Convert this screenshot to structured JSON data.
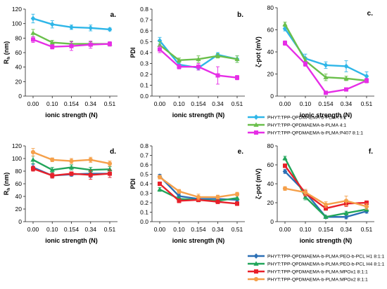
{
  "colors": {
    "cyan": "#2eb6e8",
    "green": "#6abf4b",
    "magenta": "#e62ee6",
    "blue": "#2b6fb5",
    "darkgreen": "#21a55a",
    "red": "#e8202a",
    "orange": "#f5a04a"
  },
  "legends": {
    "top": [
      {
        "label": "PHYT:TPP-QPDMAEMA-b-PLMA 9:1",
        "color": "cyan",
        "marker": "diamond"
      },
      {
        "label": "PHYT:TPP-QPDMAEMA-b-PLMA 4:1",
        "color": "green",
        "marker": "triangle"
      },
      {
        "label": "PHYT:TPP-QPDMAEMA-b-PLMA:P407 8:1:1",
        "color": "magenta",
        "marker": "square"
      }
    ],
    "bottom": [
      {
        "label": "PHYT:TPP-QPDMAEMA-b-PLMA:PEO-b-PCL H1 8:1:1",
        "color": "blue",
        "marker": "diamond"
      },
      {
        "label": "PHYT:TPP-QPDMAEMA-b-PLMA:PEO-b-PCL H4 8:1:1",
        "color": "darkgreen",
        "marker": "triangle"
      },
      {
        "label": "PHYT:TPP-QPDMAEMA-b-PLMA:MPOx1 8:1:1",
        "color": "red",
        "marker": "square"
      },
      {
        "label": "PHYT:TPP-QPDMAEMA-b-PLMA:MPOx2 8:1:1",
        "color": "orange",
        "marker": "circle"
      }
    ]
  },
  "chart_data": [
    {
      "id": "a",
      "type": "line",
      "panel_label": "a.",
      "xlabel": "ionic strength (N)",
      "ylabel": "Rh (nm)",
      "categories": [
        "0.00",
        "0.10",
        "0.154",
        "0.34",
        "0.51"
      ],
      "ylim": [
        0,
        120
      ],
      "yticks": [
        0,
        20,
        40,
        60,
        80,
        100,
        120
      ],
      "series": [
        {
          "color": "cyan",
          "marker": "diamond",
          "values": [
            107,
            99,
            95,
            94,
            92
          ],
          "errors": [
            6,
            5,
            3,
            4,
            2
          ]
        },
        {
          "color": "green",
          "marker": "triangle",
          "values": [
            87,
            74,
            72,
            72,
            72
          ],
          "errors": [
            5,
            3,
            4,
            3,
            3
          ]
        },
        {
          "color": "magenta",
          "marker": "square",
          "values": [
            78,
            68,
            69,
            71,
            72
          ],
          "errors": [
            4,
            3,
            6,
            5,
            3
          ]
        }
      ]
    },
    {
      "id": "b",
      "type": "line",
      "panel_label": "b.",
      "xlabel": "ionic strength (N)",
      "ylabel": "PDI",
      "categories": [
        "0.00",
        "0.10",
        "0.154",
        "0.34",
        "0.51"
      ],
      "ylim": [
        0,
        0.8
      ],
      "yticks": [
        0,
        0.1,
        0.2,
        0.3,
        0.4,
        0.5,
        0.6,
        0.7,
        0.8
      ],
      "series": [
        {
          "color": "cyan",
          "marker": "diamond",
          "values": [
            0.51,
            0.29,
            0.26,
            0.38,
            0.34
          ],
          "errors": [
            0.03,
            0.03,
            0.02,
            0.02,
            0.03
          ]
        },
        {
          "color": "green",
          "marker": "triangle",
          "values": [
            0.47,
            0.33,
            0.34,
            0.37,
            0.34
          ],
          "errors": [
            0.03,
            0.02,
            0.03,
            0.02,
            0.03
          ]
        },
        {
          "color": "magenta",
          "marker": "square",
          "values": [
            0.43,
            0.27,
            0.27,
            0.19,
            0.17
          ],
          "errors": [
            0.03,
            0.02,
            0.03,
            0.08,
            0.02
          ]
        }
      ]
    },
    {
      "id": "c",
      "type": "line",
      "panel_label": "c.",
      "xlabel": "ionic strength (N)",
      "ylabel": "ζ-pot (mV)",
      "categories": [
        "0.00",
        "0.10",
        "0.154",
        "0.34",
        "0.51"
      ],
      "ylim": [
        0,
        80
      ],
      "yticks": [
        0,
        20,
        40,
        60,
        80
      ],
      "series": [
        {
          "color": "cyan",
          "marker": "diamond",
          "values": [
            61,
            34,
            28,
            27,
            18
          ],
          "errors": [
            2,
            4,
            3,
            5,
            4
          ]
        },
        {
          "color": "green",
          "marker": "triangle",
          "values": [
            65,
            32,
            17,
            16,
            14
          ],
          "errors": [
            2,
            3,
            3,
            2,
            2
          ]
        },
        {
          "color": "magenta",
          "marker": "square",
          "values": [
            48,
            29,
            3,
            6,
            14
          ],
          "errors": [
            2,
            2,
            1,
            1,
            2
          ]
        }
      ]
    },
    {
      "id": "d",
      "type": "line",
      "panel_label": "d.",
      "xlabel": "ionic strength (N)",
      "ylabel": "Rh (nm)",
      "categories": [
        "0.00",
        "0.10",
        "0.154",
        "0.34",
        "0.51"
      ],
      "ylim": [
        0,
        120
      ],
      "yticks": [
        0,
        20,
        40,
        60,
        80,
        100,
        120
      ],
      "series": [
        {
          "color": "blue",
          "marker": "diamond",
          "values": [
            86,
            73,
            75,
            76,
            76
          ],
          "errors": [
            5,
            4,
            3,
            6,
            6
          ]
        },
        {
          "color": "darkgreen",
          "marker": "triangle",
          "values": [
            98,
            82,
            86,
            82,
            83
          ],
          "errors": [
            6,
            4,
            4,
            4,
            4
          ]
        },
        {
          "color": "red",
          "marker": "square",
          "values": [
            84,
            73,
            76,
            74,
            76
          ],
          "errors": [
            4,
            4,
            3,
            7,
            6
          ]
        },
        {
          "color": "orange",
          "marker": "circle",
          "values": [
            110,
            98,
            96,
            98,
            92
          ],
          "errors": [
            6,
            3,
            4,
            4,
            4
          ]
        }
      ]
    },
    {
      "id": "e",
      "type": "line",
      "panel_label": "e.",
      "xlabel": "ionic strength (N)",
      "ylabel": "PDI",
      "categories": [
        "0.00",
        "0.10",
        "0.154",
        "0.34",
        "0.51"
      ],
      "ylim": [
        0,
        0.8
      ],
      "yticks": [
        0,
        0.1,
        0.2,
        0.3,
        0.4,
        0.5,
        0.6,
        0.7,
        0.8
      ],
      "series": [
        {
          "color": "blue",
          "marker": "diamond",
          "values": [
            0.48,
            0.27,
            0.24,
            0.24,
            0.23
          ],
          "errors": [
            0.02,
            0.02,
            0.02,
            0.02,
            0.02
          ]
        },
        {
          "color": "darkgreen",
          "marker": "triangle",
          "values": [
            0.34,
            0.24,
            0.23,
            0.22,
            0.25
          ],
          "errors": [
            0.02,
            0.02,
            0.02,
            0.02,
            0.02
          ]
        },
        {
          "color": "red",
          "marker": "square",
          "values": [
            0.4,
            0.22,
            0.23,
            0.21,
            0.19
          ],
          "errors": [
            0.02,
            0.02,
            0.02,
            0.02,
            0.02
          ]
        },
        {
          "color": "orange",
          "marker": "circle",
          "values": [
            0.47,
            0.32,
            0.26,
            0.26,
            0.29
          ],
          "errors": [
            0.02,
            0.02,
            0.03,
            0.02,
            0.02
          ]
        }
      ]
    },
    {
      "id": "f",
      "type": "line",
      "panel_label": "f.",
      "xlabel": "ionic strength (N)",
      "ylabel": "ζ-pot (mV)",
      "categories": [
        "0.00",
        "0.10",
        "0.154",
        "0.34",
        "0.51"
      ],
      "ylim": [
        0,
        80
      ],
      "yticks": [
        0,
        20,
        40,
        60,
        80
      ],
      "series": [
        {
          "color": "blue",
          "marker": "diamond",
          "values": [
            53,
            31,
            5,
            5,
            11
          ],
          "errors": [
            2,
            3,
            1,
            2,
            2
          ]
        },
        {
          "color": "darkgreen",
          "marker": "triangle",
          "values": [
            67,
            26,
            5,
            9,
            13
          ],
          "errors": [
            2,
            3,
            1,
            2,
            2
          ]
        },
        {
          "color": "red",
          "marker": "square",
          "values": [
            59,
            30,
            14,
            19,
            20
          ],
          "errors": [
            2,
            3,
            2,
            3,
            2
          ]
        },
        {
          "color": "orange",
          "marker": "circle",
          "values": [
            35,
            31,
            18,
            22,
            16
          ],
          "errors": [
            2,
            3,
            3,
            5,
            3
          ]
        }
      ]
    }
  ]
}
